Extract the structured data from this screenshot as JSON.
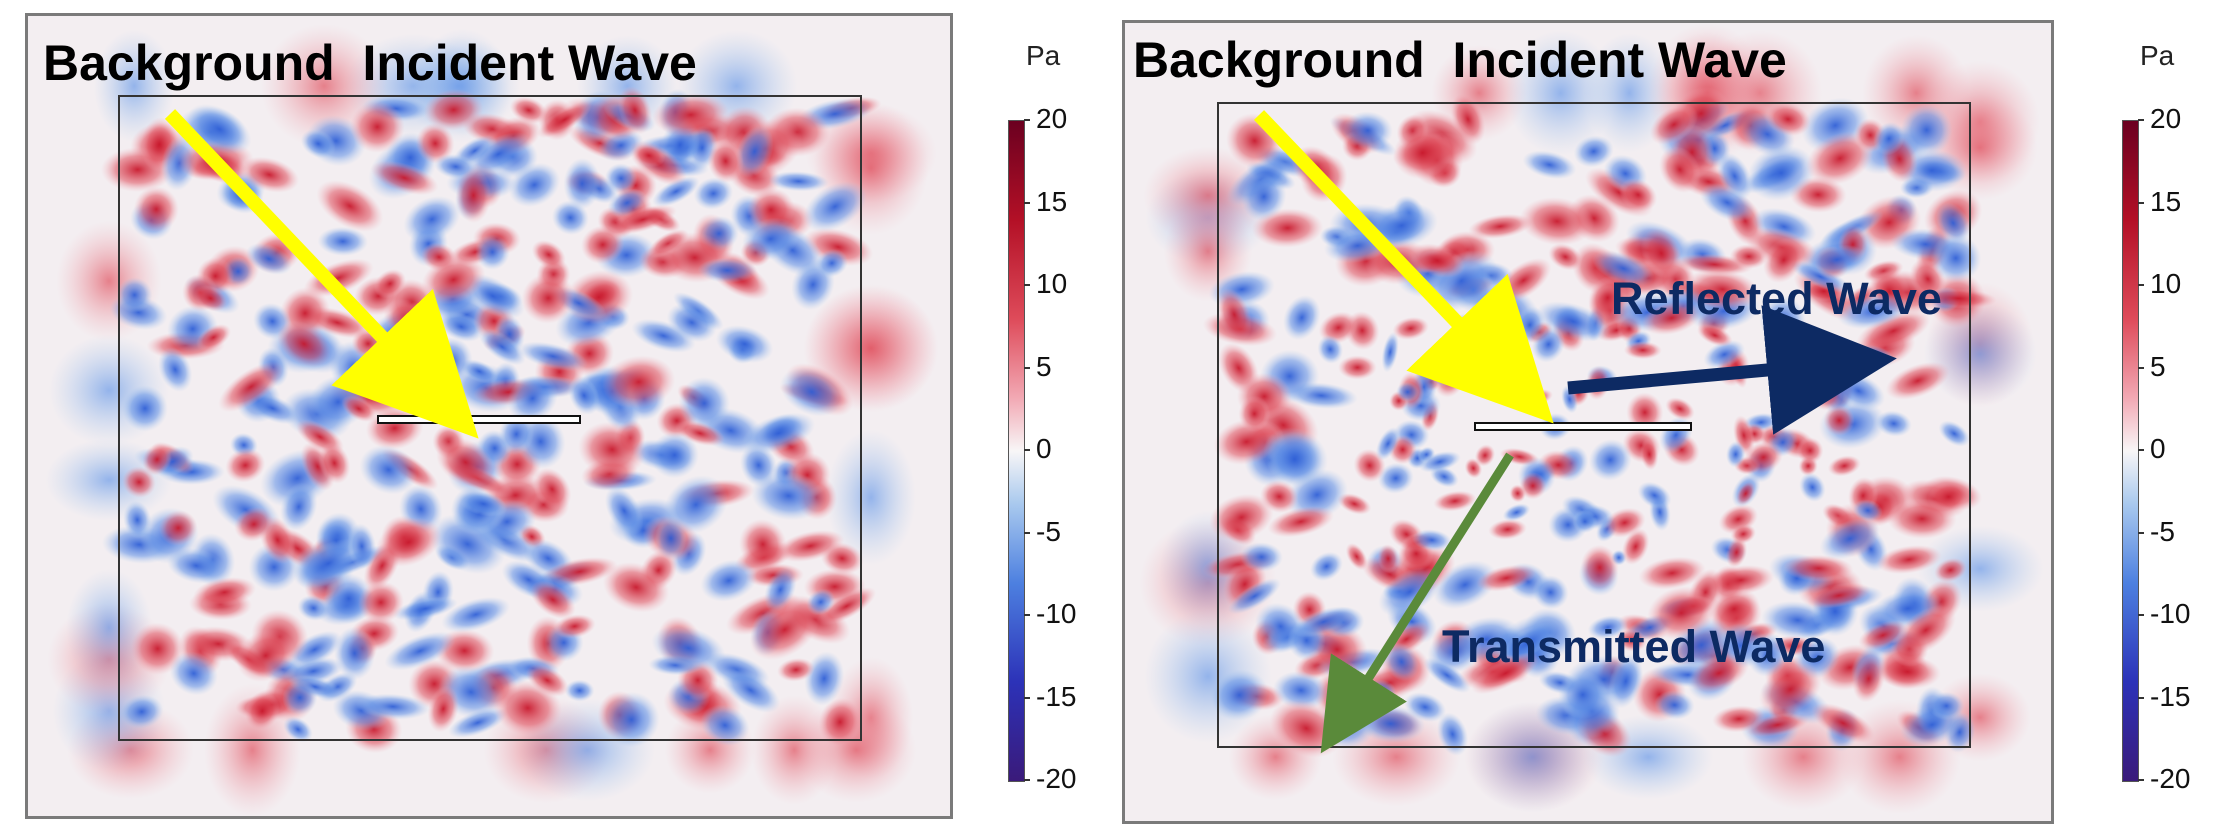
{
  "panels": [
    {
      "title": "Background  Incident Wave",
      "labels": []
    },
    {
      "title": "Background  Incident Wave",
      "labels": [
        {
          "text": "Reflected Wave",
          "color": "#0d2a63"
        },
        {
          "text": "Transmitted Wave",
          "color": "#0d2a63"
        }
      ]
    }
  ],
  "colorbar": {
    "unit": "Pa",
    "ticks": [
      "20",
      "15",
      "10",
      "5",
      "0",
      "-5",
      "-10",
      "-15",
      "-20"
    ],
    "range": [
      -20,
      20
    ]
  },
  "colors": {
    "incident_arrow": "#ffff00",
    "reflected_arrow": "#0d2a63",
    "transmitted_arrow": "#5a8a3a",
    "positive": "#d42a3a",
    "negative": "#3b6fd8"
  }
}
